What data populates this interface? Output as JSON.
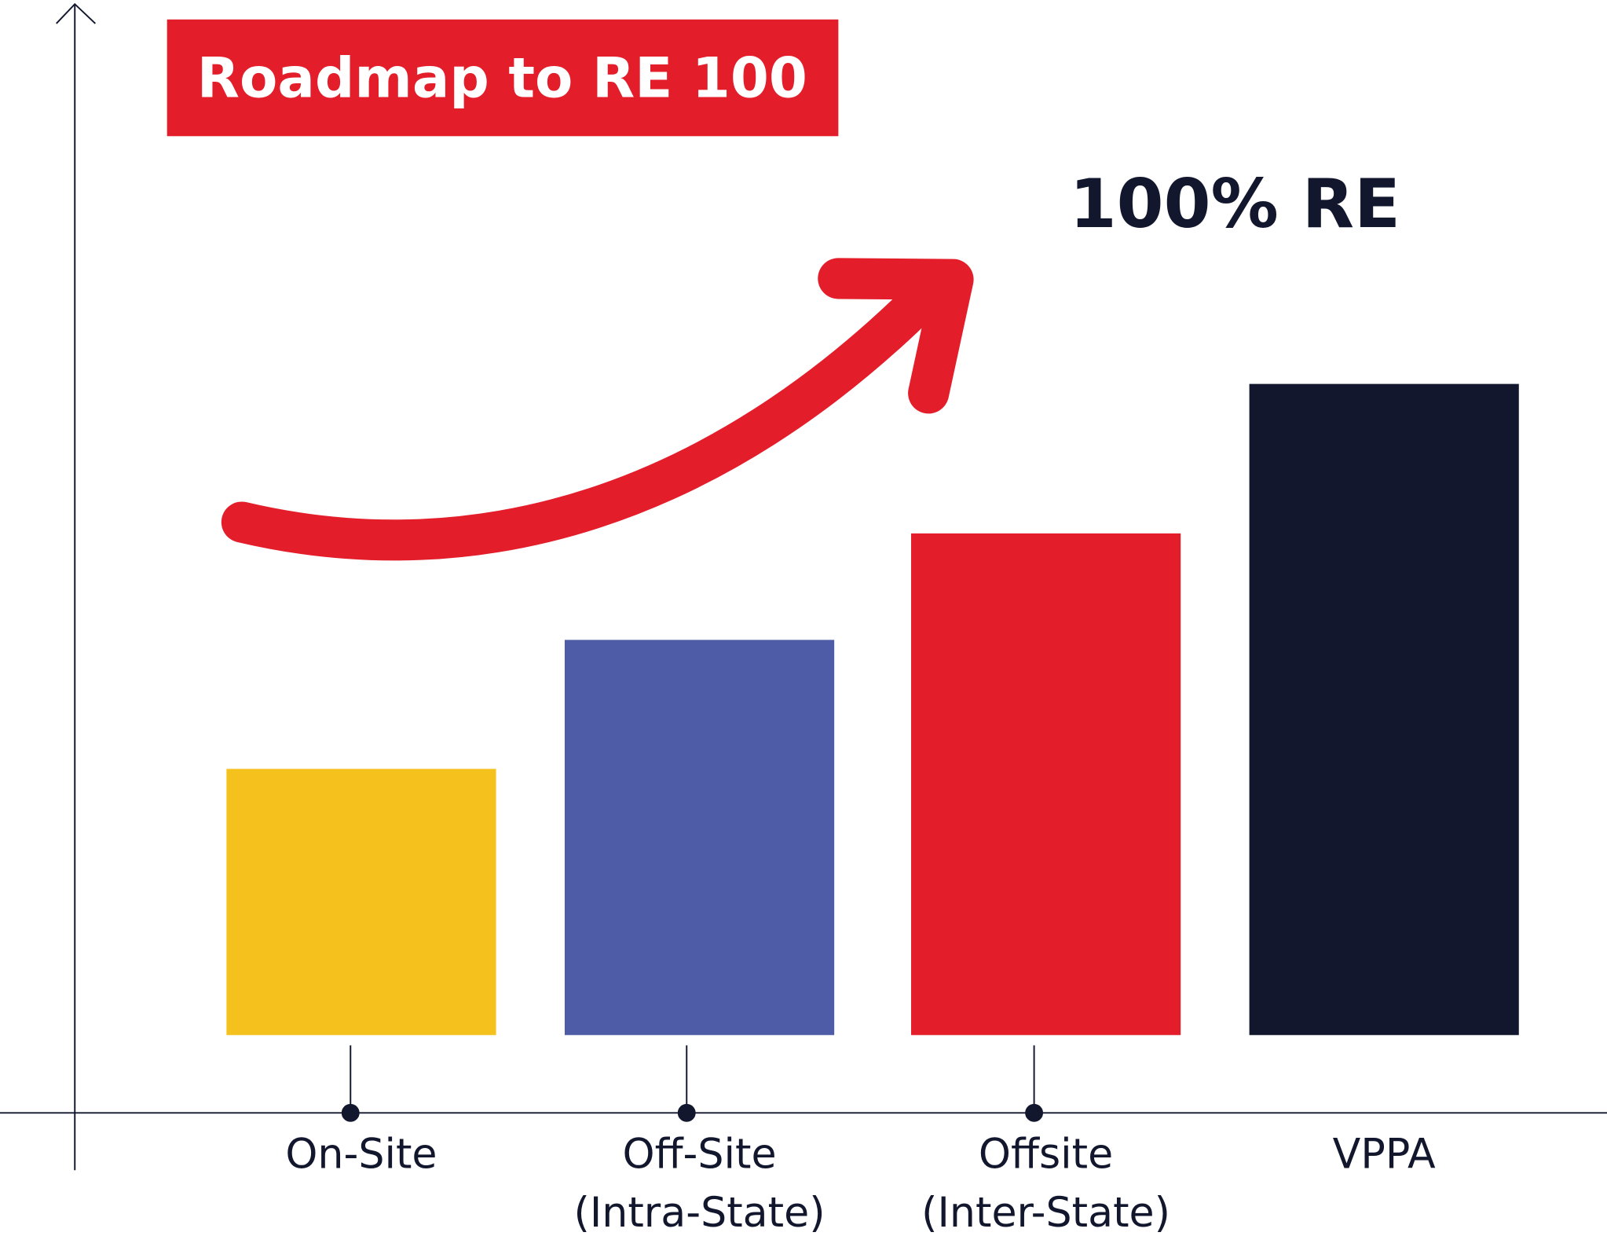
{
  "chart_data": {
    "type": "bar",
    "title": "Roadmap to RE 100",
    "annotation": "100% RE",
    "categories": [
      "On-Site",
      "Off-Site\n(Intra-State)",
      "Offsite\n(Inter-State)",
      "VPPA"
    ],
    "values": [
      26,
      38.6,
      49,
      63.6
    ],
    "colors": [
      "#f5c11d",
      "#4e5ba6",
      "#e31e2a",
      "#12172e"
    ],
    "ylim": [
      0,
      100
    ]
  }
}
